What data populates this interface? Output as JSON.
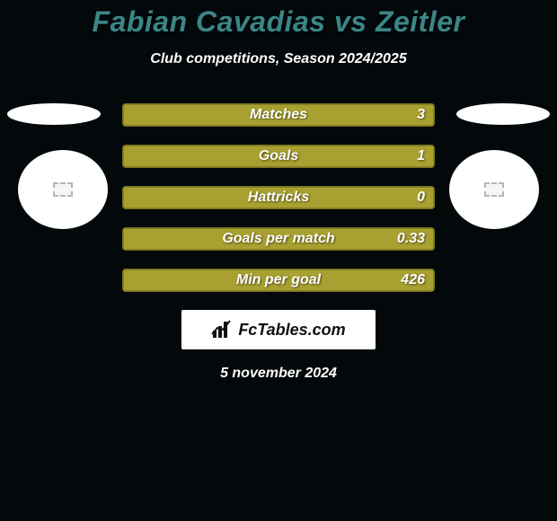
{
  "title": {
    "text": "Fabian Cavadias vs Zeitler",
    "color": "#3b8686",
    "fontsize": 32
  },
  "subtitle": {
    "text": "Club competitions, Season 2024/2025",
    "fontsize": 16
  },
  "bars": {
    "fill_color": "#a8a030",
    "border_color": "#7a7620",
    "label_fontsize": 16,
    "value_fontsize": 16,
    "items": [
      {
        "label": "Matches",
        "value": "3"
      },
      {
        "label": "Goals",
        "value": "1"
      },
      {
        "label": "Hattricks",
        "value": "0"
      },
      {
        "label": "Goals per match",
        "value": "0.33"
      },
      {
        "label": "Min per goal",
        "value": "426"
      }
    ]
  },
  "brand": {
    "text": "FcTables.com",
    "icon_name": "bars-chart-icon"
  },
  "date": {
    "text": "5 november 2024",
    "fontsize": 16
  },
  "colors": {
    "background": "#03080b",
    "white": "#ffffff"
  }
}
